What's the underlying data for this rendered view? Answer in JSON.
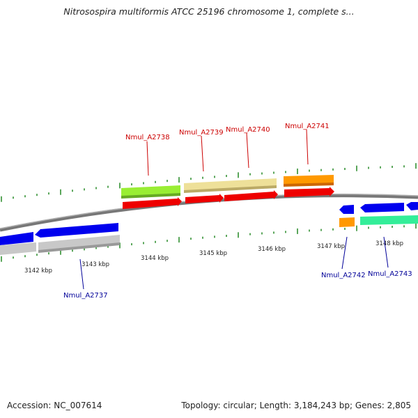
{
  "title": "Nitrosospira multiformis ATCC 25196 chromosome 1, complete s...",
  "accession": "Accession: NC_007614",
  "summary": "Topology: circular; Length: 3,184,243 bp; Genes: 2,805",
  "tick_labels": [
    "3142 kbp",
    "3143 kbp",
    "3144 kbp",
    "3145 kbp",
    "3146 kbp",
    "3147 kbp",
    "3148 kbp"
  ],
  "upper_gene_labels": [
    "Nmul_A2738",
    "Nmul_A2739",
    "Nmul_A2740",
    "Nmul_A2741"
  ],
  "lower_gene_labels": [
    "Nmul_A2737",
    "Nmul_A2742",
    "Nmul_A2743"
  ],
  "colors": {
    "forward_gene": "#ee0000",
    "reverse_gene": "#0000ee",
    "backbone": "#8a8a8a",
    "tick": "#228822",
    "label_upper": "#cc0000",
    "label_lower": "#000099",
    "feature_green": "#99ee33",
    "feature_khaki": "#eee099",
    "feature_orange": "#ff9900",
    "feature_gray": "#c8c8c8",
    "feature_teal": "#33ee99"
  }
}
